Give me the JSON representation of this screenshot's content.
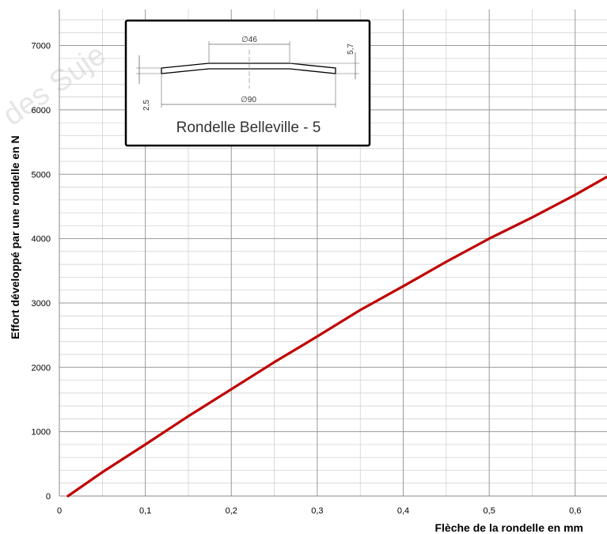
{
  "chart_data": {
    "type": "line",
    "xlabel": "Flèche de la rondelle en mm",
    "ylabel": "Effort développé par une rondelle en N",
    "xlim": [
      0,
      0.637
    ],
    "ylim": [
      0,
      7560
    ],
    "x_ticks": [
      "0",
      "0,1",
      "0,2",
      "0,3",
      "0,4",
      "0,5",
      "0,6"
    ],
    "y_ticks": [
      "0",
      "1000",
      "2000",
      "3000",
      "4000",
      "5000",
      "6000",
      "7000"
    ],
    "grid": true,
    "series": [
      {
        "color": "#c00000",
        "x": [
          0.01,
          0.05,
          0.1,
          0.15,
          0.2,
          0.25,
          0.3,
          0.35,
          0.4,
          0.45,
          0.5,
          0.55,
          0.6,
          0.637
        ],
        "y": [
          0,
          370,
          800,
          1240,
          1660,
          2080,
          2480,
          2890,
          3260,
          3640,
          4000,
          4330,
          4680,
          4960
        ]
      }
    ]
  },
  "inset": {
    "title": "Rondelle Belleville - 5",
    "dim_top": "∅46",
    "dim_bottom": "∅90",
    "dim_height": "5,7",
    "dim_thickness": "2,5"
  },
  "watermark": "des Suje"
}
